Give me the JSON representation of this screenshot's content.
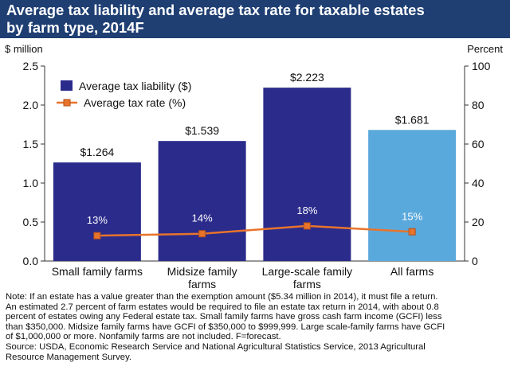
{
  "header": {
    "title_lines": [
      "Average tax liability and average tax rate for taxable estates",
      "by farm type, 2014F"
    ]
  },
  "chart_data": {
    "type": "bar",
    "title": "Average tax liability and average tax rate for taxable estates by farm type, 2014F",
    "categories": [
      [
        "Small family farms"
      ],
      [
        "Midsize family",
        "farms"
      ],
      [
        "Large-scale family",
        "farms"
      ],
      [
        "All farms"
      ]
    ],
    "left_axis": {
      "label": "$ million",
      "ylim": [
        0,
        2.5
      ],
      "ticks": [
        "0.0",
        "0.5",
        "1.0",
        "1.5",
        "2.0",
        "2.5"
      ]
    },
    "right_axis": {
      "label": "Percent",
      "ylim": [
        0,
        100
      ],
      "ticks": [
        "0",
        "20",
        "40",
        "60",
        "80",
        "100"
      ]
    },
    "series": [
      {
        "name": "Average tax liability ($)",
        "type": "bar",
        "axis": "left",
        "values": [
          1.264,
          1.539,
          2.223,
          1.681
        ],
        "labels": [
          "$1.264",
          "$1.539",
          "$2.223",
          "$1.681"
        ],
        "colors": [
          "#2b2b8c",
          "#2b2b8c",
          "#2b2b8c",
          "#5aa9dc"
        ]
      },
      {
        "name": "Average tax rate (%)",
        "type": "line",
        "axis": "right",
        "values": [
          13,
          14,
          18,
          15
        ],
        "labels": [
          "13%",
          "14%",
          "18%",
          "15%"
        ],
        "color": "#e8742b"
      }
    ],
    "legend": "top-left",
    "grid": false
  },
  "notes": {
    "lines": [
      "Note: If an estate has a value greater than the exemption amount ($5.34 million in 2014), it must file a return.",
      "An estimated 2.7 percent of farm estates would be required to file an estate tax return in 2014, with about 0.8",
      "percent of estates owing any Federal estate tax. Small family farms have gross cash farm income (GCFI) less",
      "than $350,000. Midsize family farms have GCFI of $350,000 to $999,999. Large scale-family farms have GCFI",
      "of $1,000,000 or more. Nonfamily farms are not included. F=forecast.",
      "Source: USDA, Economic Research Service and National Agricultural Statistics Service, 2013 Agricultural",
      "Resource Management Survey."
    ]
  }
}
